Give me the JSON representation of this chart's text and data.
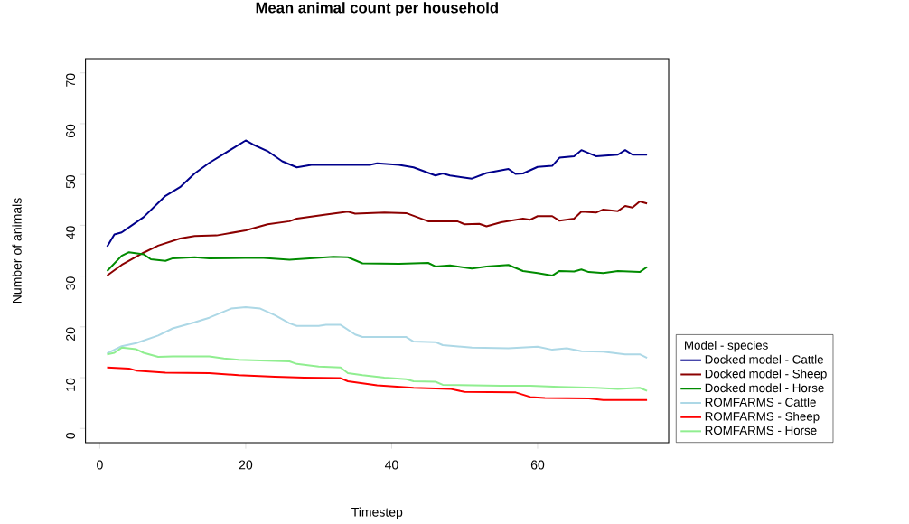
{
  "chart_data": {
    "type": "line",
    "title": "Mean animal count per household",
    "xlabel": "Timestep",
    "ylabel": "Number of animals",
    "legend_title": "Model - species",
    "legend": "right",
    "xlim": [
      -1.96,
      77.96
    ],
    "ylim": [
      -2.8,
      72.8
    ],
    "xticks": [
      0,
      20,
      40,
      60
    ],
    "yticks": [
      0,
      10,
      20,
      30,
      40,
      50,
      60,
      70
    ],
    "series": [
      {
        "name": "Docked model - Cattle",
        "color": "#00008b",
        "x": [
          1,
          2,
          3,
          6,
          9,
          11,
          13,
          15,
          20,
          21,
          23,
          25,
          27,
          29,
          37,
          38,
          41,
          43,
          46,
          47,
          48,
          51,
          53,
          56,
          57,
          58,
          60,
          62,
          63,
          65,
          66,
          68,
          71,
          72,
          73,
          75
        ],
        "values": [
          35.8,
          38.2,
          38.6,
          41.6,
          45.8,
          47.5,
          50.2,
          52.3,
          56.7,
          55.9,
          54.6,
          52.6,
          51.4,
          51.9,
          51.9,
          52.2,
          51.9,
          51.4,
          49.8,
          50.2,
          49.8,
          49.2,
          50.3,
          51.1,
          50.1,
          50.2,
          51.5,
          51.7,
          53.3,
          53.6,
          54.8,
          53.6,
          53.9,
          54.8,
          53.9,
          53.9
        ]
      },
      {
        "name": "Docked model - Sheep",
        "color": "#8b0000",
        "x": [
          1,
          3,
          6,
          8,
          11,
          13,
          16,
          20,
          23,
          26,
          27,
          31,
          34,
          35,
          39,
          42,
          45,
          49,
          50,
          52,
          53,
          55,
          58,
          59,
          60,
          62,
          63,
          65,
          66,
          68,
          69,
          71,
          72,
          73,
          74,
          75
        ],
        "values": [
          30.1,
          32.2,
          34.6,
          36.0,
          37.4,
          37.9,
          38.0,
          39.0,
          40.2,
          40.8,
          41.3,
          42.1,
          42.7,
          42.3,
          42.5,
          42.4,
          40.8,
          40.8,
          40.2,
          40.3,
          39.8,
          40.6,
          41.3,
          41.1,
          41.8,
          41.8,
          40.9,
          41.3,
          42.7,
          42.5,
          43.1,
          42.8,
          43.8,
          43.5,
          44.7,
          44.3
        ]
      },
      {
        "name": "Docked model - Horse",
        "color": "#008b00",
        "x": [
          1,
          3,
          4,
          6,
          7,
          9,
          10,
          13,
          15,
          22,
          26,
          32,
          34,
          36,
          41,
          45,
          46,
          48,
          51,
          53,
          56,
          58,
          60,
          62,
          63,
          65,
          66,
          67,
          69,
          71,
          74,
          75
        ],
        "values": [
          31.0,
          34.0,
          34.7,
          34.3,
          33.3,
          33.0,
          33.5,
          33.7,
          33.5,
          33.6,
          33.2,
          33.8,
          33.7,
          32.5,
          32.4,
          32.6,
          31.9,
          32.1,
          31.5,
          31.9,
          32.2,
          31.0,
          30.6,
          30.1,
          31.0,
          30.9,
          31.3,
          30.8,
          30.6,
          31.0,
          30.8,
          31.8
        ]
      },
      {
        "name": "ROMFARMS - Cattle",
        "color": "#add8e6",
        "x": [
          1,
          3,
          5,
          8,
          10,
          13,
          15,
          18,
          20,
          22,
          24,
          26,
          27,
          30,
          31,
          33,
          35,
          36,
          42,
          43,
          46,
          47,
          51,
          56,
          60,
          62,
          64,
          66,
          69,
          72,
          74,
          75
        ],
        "values": [
          14.8,
          16.2,
          16.8,
          18.3,
          19.7,
          20.9,
          21.8,
          23.6,
          23.9,
          23.6,
          22.3,
          20.7,
          20.2,
          20.2,
          20.4,
          20.4,
          18.5,
          18.0,
          18.0,
          17.1,
          17.0,
          16.4,
          15.9,
          15.8,
          16.1,
          15.5,
          15.8,
          15.2,
          15.1,
          14.6,
          14.6,
          13.9
        ]
      },
      {
        "name": "ROMFARMS - Sheep",
        "color": "#ff0000",
        "x": [
          1,
          4,
          5,
          9,
          15,
          19,
          24,
          28,
          33,
          34,
          36,
          38,
          43,
          48,
          50,
          57,
          59,
          61,
          67,
          69,
          75
        ],
        "values": [
          12.0,
          11.8,
          11.4,
          11.0,
          10.9,
          10.5,
          10.2,
          10.0,
          9.9,
          9.3,
          8.9,
          8.5,
          8.0,
          7.8,
          7.2,
          7.1,
          6.2,
          6.0,
          5.9,
          5.6,
          5.6
        ]
      },
      {
        "name": "ROMFARMS - Horse",
        "color": "#90ee90",
        "x": [
          1,
          2,
          3,
          5,
          6,
          8,
          10,
          15,
          17,
          19,
          26,
          27,
          30,
          33,
          34,
          36,
          39,
          42,
          43,
          46,
          47,
          55,
          59,
          63,
          68,
          71,
          74,
          75
        ],
        "values": [
          14.6,
          14.9,
          15.9,
          15.6,
          14.9,
          14.1,
          14.2,
          14.2,
          13.8,
          13.5,
          13.2,
          12.7,
          12.2,
          12.0,
          10.9,
          10.5,
          10.0,
          9.7,
          9.3,
          9.2,
          8.6,
          8.4,
          8.4,
          8.2,
          8.0,
          7.8,
          8.0,
          7.4
        ]
      }
    ]
  }
}
